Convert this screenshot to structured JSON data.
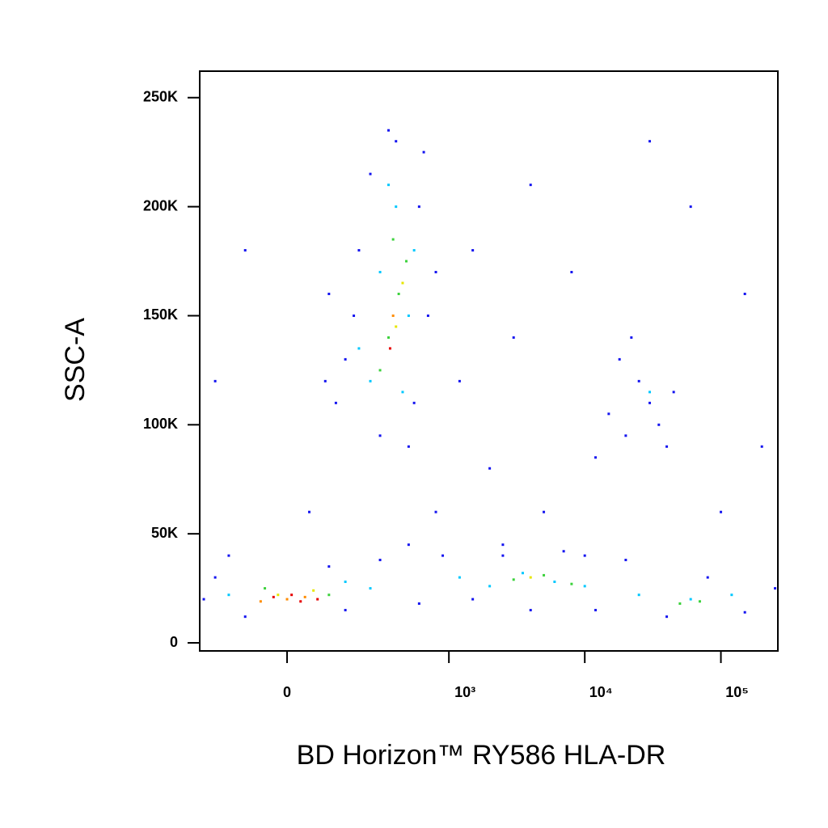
{
  "chart_data": {
    "type": "scatter",
    "xlabel": "BD Horizon™ RY586 HLA-DR",
    "ylabel": "SSC-A",
    "xscale": "arcsinh",
    "xlim": [
      -270,
      262144
    ],
    "xticks": [
      0,
      {
        "value": 1000,
        "label": "10³"
      },
      {
        "value": 10000,
        "label": "10⁴"
      },
      {
        "value": 100000,
        "label": "10⁵"
      }
    ],
    "ylim": [
      -3700,
      262144
    ],
    "yticks": [
      0,
      {
        "value": 50000,
        "label": "50K"
      },
      {
        "value": 100000,
        "label": "100K"
      },
      {
        "value": 150000,
        "label": "150K"
      },
      {
        "value": 200000,
        "label": "200K"
      },
      {
        "value": 250000,
        "label": "250K"
      }
    ],
    "series": [
      {
        "color": "#1414f0",
        "x": [
          150,
          250,
          400,
          600,
          700,
          120,
          300,
          550,
          200,
          650,
          180,
          500,
          90,
          800,
          350,
          100,
          1500,
          3000,
          2000,
          5000,
          800,
          1200,
          4000,
          8000,
          30000,
          60000,
          150000,
          -100,
          -200,
          50,
          10000,
          2500,
          200000,
          100000,
          15000,
          20000,
          25000,
          30000,
          40000,
          18000,
          35000,
          12000,
          45000,
          22000,
          -250,
          -200,
          -100,
          100,
          150,
          300,
          600,
          900,
          1500,
          2500,
          4000,
          7000,
          12000,
          20000,
          40000,
          80000,
          150000,
          250000,
          -150,
          500
        ],
        "values": [
          130000,
          215000,
          230000,
          200000,
          150000,
          110000,
          95000,
          110000,
          180000,
          225000,
          150000,
          90000,
          120000,
          170000,
          235000,
          160000,
          180000,
          140000,
          80000,
          60000,
          60000,
          120000,
          210000,
          170000,
          230000,
          200000,
          160000,
          180000,
          120000,
          60000,
          40000,
          45000,
          90000,
          60000,
          105000,
          95000,
          120000,
          110000,
          90000,
          130000,
          100000,
          85000,
          115000,
          140000,
          20000,
          30000,
          12000,
          35000,
          15000,
          38000,
          18000,
          40000,
          20000,
          40000,
          15000,
          42000,
          15000,
          38000,
          12000,
          30000,
          14000,
          25000,
          40000,
          45000
        ]
      },
      {
        "color": "#00c8ff",
        "x": [
          250,
          400,
          300,
          500,
          200,
          450,
          350,
          550,
          -150,
          150,
          250,
          1200,
          2000,
          3500,
          6000,
          10000,
          25000,
          60000,
          120000,
          30000
        ],
        "values": [
          120000,
          200000,
          170000,
          150000,
          135000,
          115000,
          210000,
          180000,
          22000,
          28000,
          25000,
          30000,
          26000,
          32000,
          28000,
          26000,
          22000,
          20000,
          22000,
          115000
        ]
      },
      {
        "color": "#3cd23c",
        "x": [
          350,
          420,
          300,
          480,
          380,
          -50,
          100,
          3000,
          5000,
          8000,
          70000,
          50000
        ],
        "values": [
          140000,
          160000,
          125000,
          175000,
          185000,
          25000,
          22000,
          29000,
          31000,
          27000,
          19000,
          18000
        ]
      },
      {
        "color": "#e6e600",
        "x": [
          400,
          450,
          -20,
          60,
          4000
        ],
        "values": [
          145000,
          165000,
          22000,
          24000,
          30000
        ]
      },
      {
        "color": "#ff8c00",
        "x": [
          380,
          0,
          40,
          -60
        ],
        "values": [
          150000,
          20000,
          21000,
          19000
        ]
      },
      {
        "color": "#e60000",
        "x": [
          360,
          10,
          30,
          -30,
          70
        ],
        "values": [
          135000,
          22000,
          19000,
          21000,
          20000
        ]
      }
    ]
  }
}
